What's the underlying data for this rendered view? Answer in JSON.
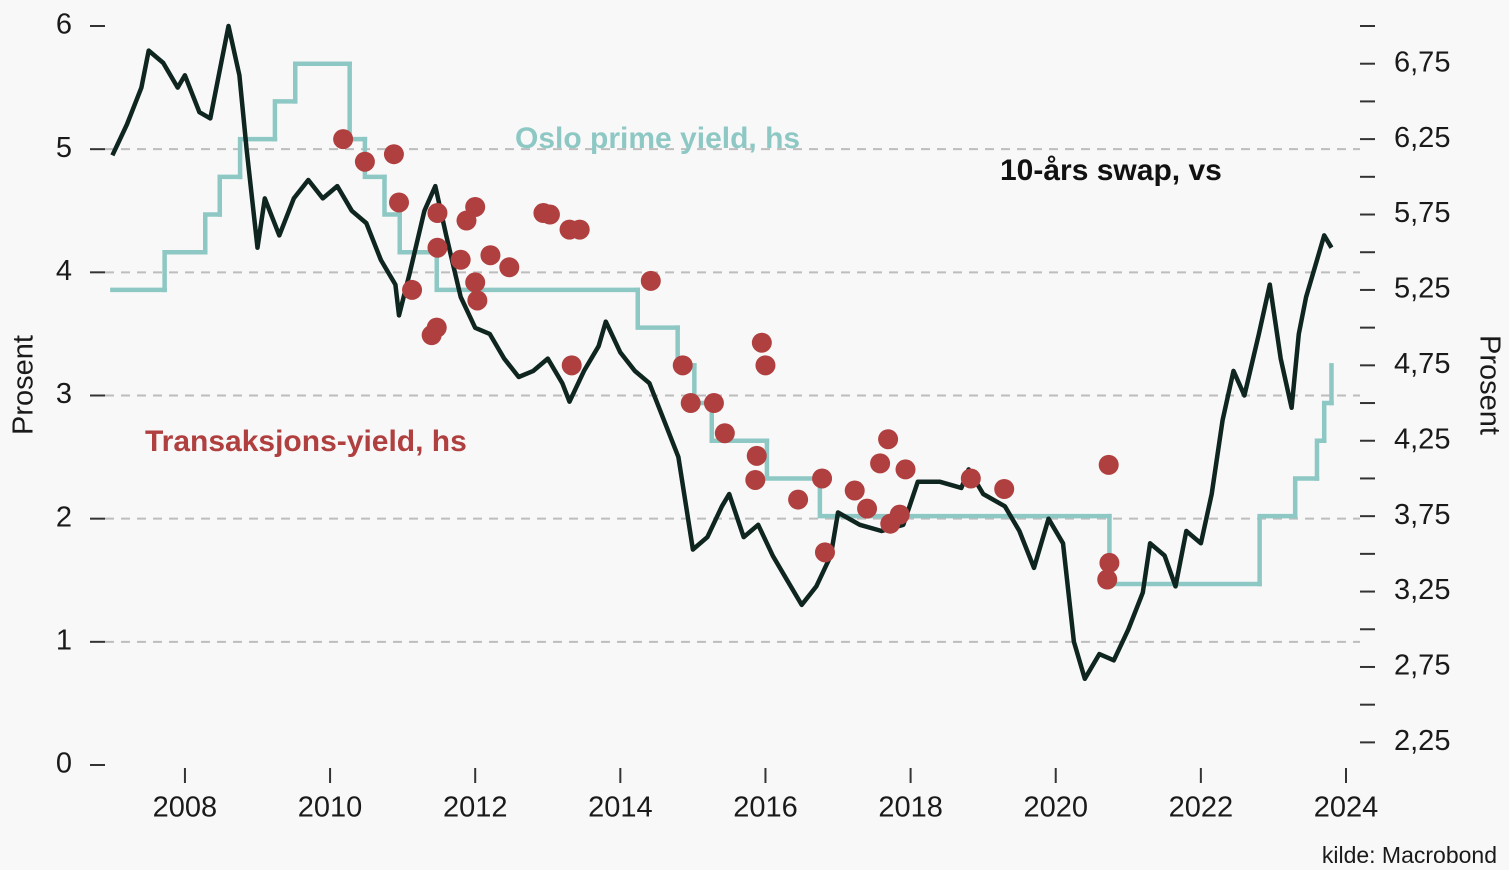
{
  "chart_data": {
    "type": "line",
    "xlim": [
      2006.7,
      2024.2
    ],
    "xticks": [
      2008,
      2010,
      2012,
      2014,
      2016,
      2018,
      2020,
      2022,
      2024
    ],
    "ylim": [
      0,
      6
    ],
    "yticks": [
      0,
      1,
      2,
      3,
      4,
      5,
      6
    ],
    "y2lim": [
      2.1,
      7.0
    ],
    "y2ticks": [
      {
        "value": 2.25,
        "label": "2,25"
      },
      {
        "value": 2.75,
        "label": "2,75"
      },
      {
        "value": 3.25,
        "label": "3,25"
      },
      {
        "value": 3.75,
        "label": "3,75"
      },
      {
        "value": 4.25,
        "label": "4,25"
      },
      {
        "value": 4.75,
        "label": "4,75"
      },
      {
        "value": 5.25,
        "label": "5,25"
      },
      {
        "value": 5.75,
        "label": "5,75"
      },
      {
        "value": 6.25,
        "label": "6,25"
      },
      {
        "value": 6.75,
        "label": "6,75"
      }
    ],
    "y2minor_ticks": [
      2.5,
      3.0,
      3.5,
      4.0,
      4.5,
      5.0,
      5.5,
      6.0,
      6.5,
      7.0
    ],
    "ylabel": "Prosent",
    "y2label": "Prosent",
    "source": "kilde: Macrobond",
    "grid": true,
    "series": [
      {
        "name": "10-års swap, vs",
        "type": "line",
        "color": "#0f2520",
        "x": [
          2007.0,
          2007.2,
          2007.4,
          2007.5,
          2007.7,
          2007.9,
          2008.0,
          2008.2,
          2008.35,
          2008.5,
          2008.6,
          2008.75,
          2008.85,
          2009.0,
          2009.1,
          2009.3,
          2009.5,
          2009.7,
          2009.9,
          2010.1,
          2010.3,
          2010.5,
          2010.7,
          2010.9,
          2010.95,
          2011.1,
          2011.3,
          2011.45,
          2011.6,
          2011.8,
          2012.0,
          2012.2,
          2012.4,
          2012.6,
          2012.8,
          2013.0,
          2013.2,
          2013.3,
          2013.5,
          2013.7,
          2013.8,
          2014.0,
          2014.2,
          2014.4,
          2014.6,
          2014.8,
          2015.0,
          2015.2,
          2015.4,
          2015.5,
          2015.7,
          2015.9,
          2016.1,
          2016.3,
          2016.5,
          2016.7,
          2016.9,
          2017.0,
          2017.3,
          2017.6,
          2017.9,
          2018.1,
          2018.4,
          2018.7,
          2018.8,
          2019.0,
          2019.3,
          2019.5,
          2019.7,
          2019.9,
          2020.1,
          2020.25,
          2020.4,
          2020.6,
          2020.8,
          2021.0,
          2021.2,
          2021.3,
          2021.5,
          2021.65,
          2021.8,
          2022.0,
          2022.15,
          2022.3,
          2022.45,
          2022.6,
          2022.8,
          2022.95,
          2023.1,
          2023.25,
          2023.35,
          2023.45,
          2023.6,
          2023.7,
          2023.8
        ],
        "values": [
          4.95,
          5.2,
          5.5,
          5.8,
          5.7,
          5.5,
          5.6,
          5.3,
          5.25,
          5.7,
          6.0,
          5.6,
          5.0,
          4.2,
          4.6,
          4.3,
          4.6,
          4.75,
          4.6,
          4.7,
          4.5,
          4.4,
          4.1,
          3.9,
          3.65,
          4.0,
          4.5,
          4.7,
          4.3,
          3.8,
          3.55,
          3.5,
          3.3,
          3.15,
          3.2,
          3.3,
          3.1,
          2.95,
          3.2,
          3.4,
          3.6,
          3.35,
          3.2,
          3.1,
          2.8,
          2.5,
          1.75,
          1.85,
          2.1,
          2.2,
          1.85,
          1.95,
          1.7,
          1.5,
          1.3,
          1.45,
          1.7,
          2.05,
          1.95,
          1.9,
          1.95,
          2.3,
          2.3,
          2.25,
          2.4,
          2.2,
          2.1,
          1.9,
          1.6,
          2.0,
          1.8,
          1.0,
          0.7,
          0.9,
          0.85,
          1.1,
          1.4,
          1.8,
          1.7,
          1.45,
          1.9,
          1.8,
          2.2,
          2.8,
          3.2,
          3.0,
          3.5,
          3.9,
          3.3,
          2.9,
          3.5,
          3.8,
          4.1,
          4.3,
          4.2
        ]
      },
      {
        "name": "Oslo prime yield, hs",
        "type": "step",
        "axis": "y2",
        "color": "#8ec8c4",
        "x": [
          2007.0,
          2007.72,
          2008.28,
          2008.48,
          2008.76,
          2009.24,
          2009.52,
          2010.27,
          2010.48,
          2010.75,
          2010.96,
          2011.47,
          2014.24,
          2014.79,
          2015.02,
          2015.26,
          2016.02,
          2016.75,
          2020.74,
          2022.81,
          2023.3,
          2023.6,
          2023.7,
          2023.8
        ],
        "values": [
          5.25,
          5.5,
          5.75,
          6.0,
          6.25,
          6.5,
          6.75,
          6.25,
          6.0,
          5.75,
          5.5,
          5.25,
          5.0,
          4.75,
          4.5,
          4.25,
          4.0,
          3.75,
          3.3,
          3.75,
          4.0,
          4.25,
          4.5,
          4.75
        ]
      },
      {
        "name": "Transaksjons-yield, hs",
        "type": "scatter",
        "axis": "y2",
        "color": "#b0403f",
        "x": [
          2010.18,
          2010.48,
          2010.88,
          2010.95,
          2011.13,
          2011.4,
          2011.47,
          2011.48,
          2011.48,
          2011.8,
          2011.88,
          2012.0,
          2012.0,
          2012.03,
          2012.21,
          2012.47,
          2012.94,
          2013.03,
          2013.3,
          2013.44,
          2013.33,
          2014.42,
          2014.86,
          2014.97,
          2015.29,
          2015.44,
          2015.95,
          2016.0,
          2015.88,
          2015.86,
          2016.45,
          2016.78,
          2016.82,
          2017.23,
          2017.4,
          2017.58,
          2017.69,
          2017.72,
          2017.85,
          2017.93,
          2018.83,
          2019.29,
          2020.73,
          2020.74,
          2020.71
        ],
        "values": [
          6.25,
          6.1,
          6.15,
          5.83,
          5.25,
          4.95,
          5.0,
          5.76,
          5.53,
          5.45,
          5.71,
          5.8,
          5.3,
          5.18,
          5.48,
          5.4,
          5.76,
          5.75,
          5.65,
          5.65,
          4.75,
          5.31,
          4.75,
          4.5,
          4.5,
          4.3,
          4.9,
          4.75,
          4.15,
          3.99,
          3.86,
          4.0,
          3.51,
          3.92,
          3.8,
          4.1,
          4.26,
          3.7,
          3.76,
          4.06,
          4.0,
          3.93,
          4.09,
          3.44,
          3.33
        ]
      }
    ]
  }
}
